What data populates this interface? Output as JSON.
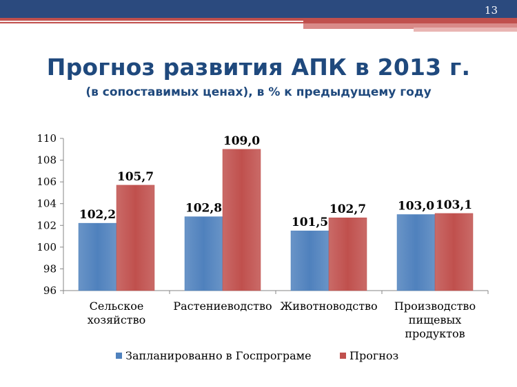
{
  "slide": {
    "number": "13"
  },
  "title": "Прогноз развития АПК в 2013 г.",
  "subtitle": "(в сопоставимых ценах), в % к предыдущему году",
  "colors": {
    "header_blue": "#2b4a7e",
    "accent_red": "#c0504d",
    "title_blue": "#1f497d"
  },
  "chart_data": {
    "type": "bar",
    "title": "",
    "xlabel": "",
    "ylabel": "",
    "ylim": [
      96,
      110
    ],
    "yticks": [
      96,
      98,
      100,
      102,
      104,
      106,
      108,
      110
    ],
    "grid": false,
    "legend_position": "bottom",
    "categories": [
      [
        "Сельское",
        "хозяйство"
      ],
      [
        "Растениеводство"
      ],
      [
        "Животноводство"
      ],
      [
        "Производство",
        "пищевых",
        "продуктов"
      ]
    ],
    "series": [
      {
        "name": "Запланированно в Госпрограме",
        "color": "#4f81bd",
        "values": [
          102.2,
          102.8,
          101.5,
          103.0
        ],
        "labels": [
          "102,2",
          "102,8",
          "101,5",
          "103,0"
        ]
      },
      {
        "name": "Прогноз",
        "color": "#c0504d",
        "values": [
          105.7,
          109.0,
          102.7,
          103.1
        ],
        "labels": [
          "105,7",
          "109,0",
          "102,7",
          "103,1"
        ]
      }
    ]
  }
}
